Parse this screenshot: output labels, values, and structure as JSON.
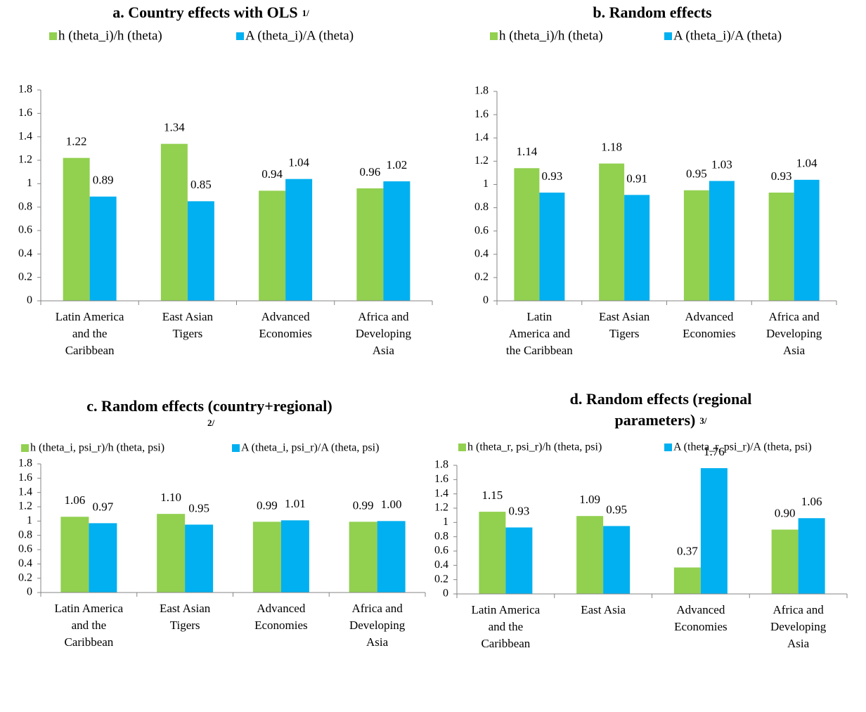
{
  "chart_data": [
    {
      "type": "bar",
      "title": [
        "a. Country effects with OLS"
      ],
      "title_note": "1/",
      "categories": [
        [
          "Latin America",
          "and the",
          "Caribbean"
        ],
        [
          "East Asian",
          "Tigers"
        ],
        [
          "Advanced",
          "Economies"
        ],
        [
          "Africa and",
          "Developing",
          "Asia"
        ]
      ],
      "series": [
        {
          "name": "h (theta_i)/h (theta)",
          "color": "#92d050",
          "values": [
            1.22,
            1.34,
            0.94,
            0.96
          ],
          "value_labels": [
            "1.22",
            "1.34",
            "0.94",
            "0.96"
          ]
        },
        {
          "name": "A (theta_i)/A (theta)",
          "color": "#00b0f0",
          "values": [
            0.89,
            0.85,
            1.04,
            1.02
          ],
          "value_labels": [
            "0.89",
            "0.85",
            "1.04",
            "1.02"
          ]
        }
      ],
      "ylim": [
        0,
        1.8
      ],
      "yticks": [
        0,
        0.2,
        0.4,
        0.6,
        0.8,
        1,
        1.2,
        1.4,
        1.6,
        1.8
      ],
      "grid": false,
      "legend": "top"
    },
    {
      "type": "bar",
      "title": [
        "b. Random effects"
      ],
      "categories": [
        [
          "Latin",
          "America and",
          "the Caribbean"
        ],
        [
          "East Asian",
          "Tigers"
        ],
        [
          "Advanced",
          "Economies"
        ],
        [
          "Africa and",
          "Developing",
          "Asia"
        ]
      ],
      "series": [
        {
          "name": "h (theta_i)/h (theta)",
          "color": "#92d050",
          "values": [
            1.14,
            1.18,
            0.95,
            0.93
          ],
          "value_labels": [
            "1.14",
            "1.18",
            "0.95",
            "0.93"
          ]
        },
        {
          "name": "A (theta_i)/A (theta)",
          "color": "#00b0f0",
          "values": [
            0.93,
            0.91,
            1.03,
            1.04
          ],
          "value_labels": [
            "0.93",
            "0.91",
            "1.03",
            "1.04"
          ]
        }
      ],
      "ylim": [
        0,
        1.8
      ],
      "yticks": [
        0,
        0.2,
        0.4,
        0.6,
        0.8,
        1,
        1.2,
        1.4,
        1.6,
        1.8
      ],
      "grid": false,
      "legend": "top"
    },
    {
      "type": "bar",
      "title": [
        "c. Random effects (country+regional)"
      ],
      "title_note": "2/",
      "categories": [
        [
          "Latin America",
          "and the",
          "Caribbean"
        ],
        [
          "East Asian",
          "Tigers"
        ],
        [
          "Advanced",
          "Economies"
        ],
        [
          "Africa and",
          "Developing",
          "Asia"
        ]
      ],
      "series": [
        {
          "name": "h (theta_i, psi_r)/h (theta, psi)",
          "color": "#92d050",
          "values": [
            1.06,
            1.1,
            0.99,
            0.99
          ],
          "value_labels": [
            "1.06",
            "1.10",
            "0.99",
            "0.99"
          ]
        },
        {
          "name": "A (theta_i, psi_r)/A (theta, psi)",
          "color": "#00b0f0",
          "values": [
            0.97,
            0.95,
            1.01,
            1.0
          ],
          "value_labels": [
            "0.97",
            "0.95",
            "1.01",
            "1.00"
          ]
        }
      ],
      "ylim": [
        0,
        1.8
      ],
      "yticks": [
        0,
        0.2,
        0.4,
        0.6,
        0.8,
        1,
        1.2,
        1.4,
        1.6,
        1.8
      ],
      "grid": false,
      "legend": "top"
    },
    {
      "type": "bar",
      "title": [
        "d. Random effects (regional",
        "parameters)"
      ],
      "title_note": "3/",
      "categories": [
        [
          "Latin America",
          "and the",
          "Caribbean"
        ],
        [
          "East Asia"
        ],
        [
          "Advanced",
          "Economies"
        ],
        [
          "Africa and",
          "Developing",
          "Asia"
        ]
      ],
      "series": [
        {
          "name": "h (theta_r, psi_r)/h (theta, psi)",
          "color": "#92d050",
          "values": [
            1.15,
            1.09,
            0.37,
            0.9
          ],
          "value_labels": [
            "1.15",
            "1.09",
            "0.37",
            "0.90"
          ]
        },
        {
          "name": "A (theta_r, psi_r)/A (theta, psi)",
          "color": "#00b0f0",
          "values": [
            0.93,
            0.95,
            1.76,
            1.06
          ],
          "value_labels": [
            "0.93",
            "0.95",
            "1.76",
            "1.06"
          ]
        }
      ],
      "ylim": [
        0,
        1.8
      ],
      "yticks": [
        0,
        0.2,
        0.4,
        0.6,
        0.8,
        1,
        1.2,
        1.4,
        1.6,
        1.8
      ],
      "grid": false,
      "legend": "top"
    }
  ]
}
